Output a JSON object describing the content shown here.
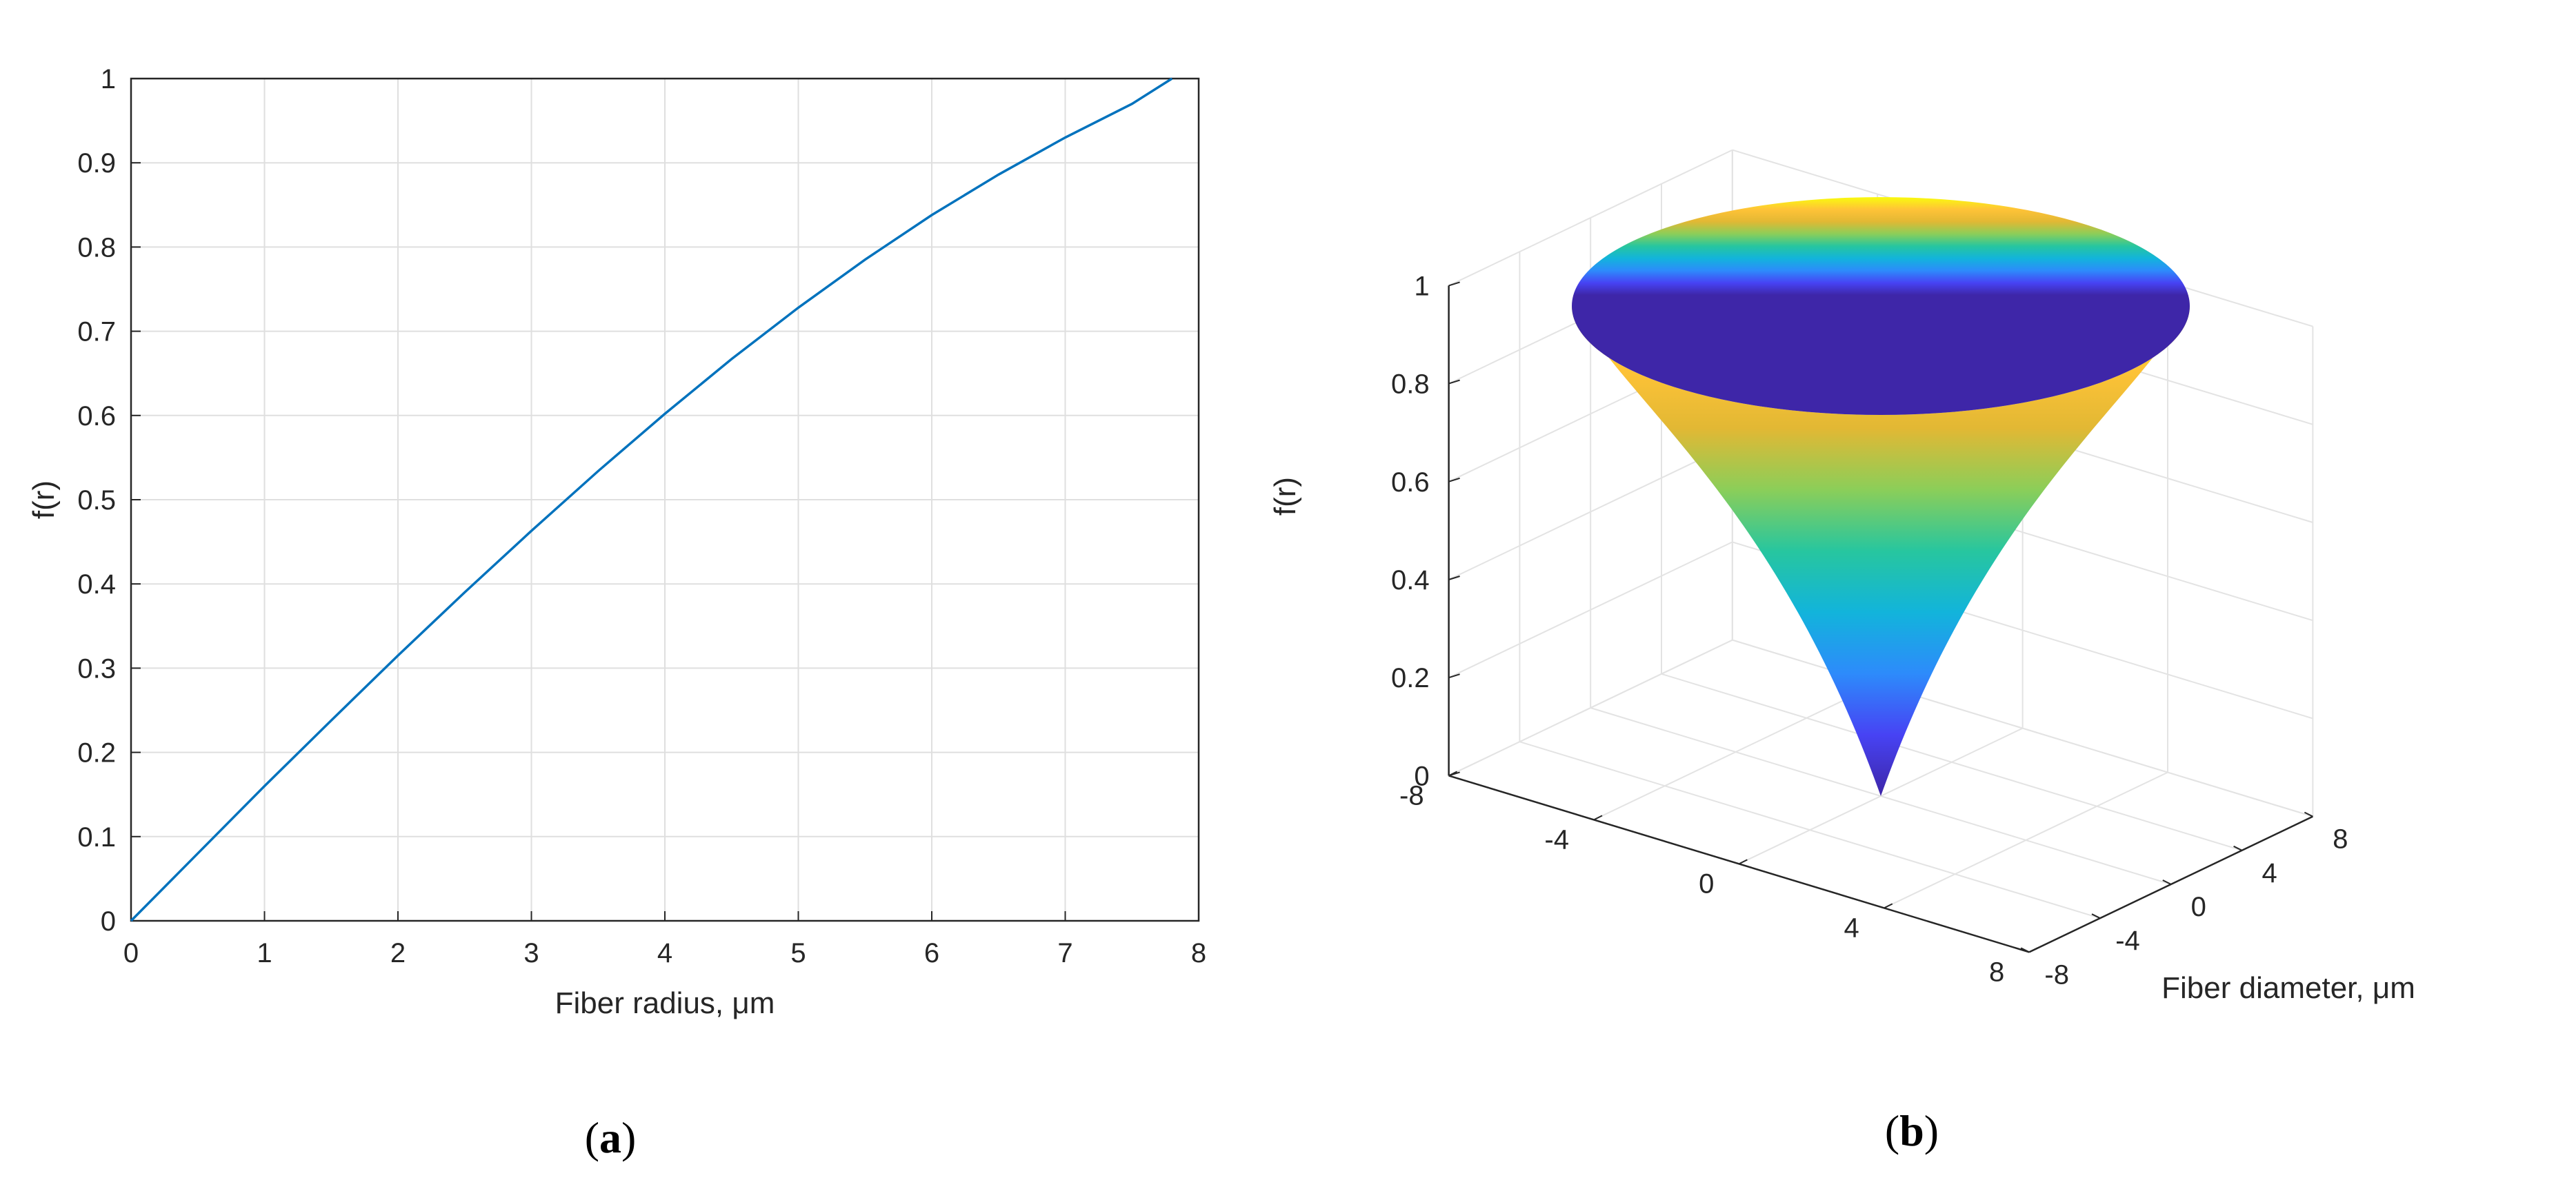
{
  "chart_data": [
    {
      "type": "line",
      "panel_label": {
        "open": "(",
        "letter": "a",
        "close": ")"
      },
      "xlabel": "Fiber radius, μm",
      "ylabel": "f(r)",
      "xlim": [
        0,
        8
      ],
      "ylim": [
        0,
        1
      ],
      "xticks": [
        "0",
        "1",
        "2",
        "3",
        "4",
        "5",
        "6",
        "7",
        "8"
      ],
      "yticks": [
        "0",
        "0.1",
        "0.2",
        "0.3",
        "0.4",
        "0.5",
        "0.6",
        "0.7",
        "0.8",
        "0.9",
        "1"
      ],
      "grid": true,
      "series": [
        {
          "color": "#0072BD",
          "x": [
            0,
            0.5,
            1,
            1.5,
            2,
            2.5,
            3,
            3.5,
            4,
            4.5,
            5,
            5.5,
            6,
            6.5,
            7,
            7.5,
            7.8
          ],
          "y": [
            0,
            0.08,
            0.16,
            0.238,
            0.315,
            0.39,
            0.463,
            0.534,
            0.602,
            0.667,
            0.728,
            0.785,
            0.838,
            0.886,
            0.93,
            0.97,
            1.0
          ]
        }
      ]
    },
    {
      "type": "surface3d",
      "panel_label": {
        "open": "(",
        "letter": "b",
        "close": ")"
      },
      "xlabel": "Fiber diameter, μm",
      "ylabel": "",
      "zlabel": "f(r)",
      "xlim": [
        -8,
        8
      ],
      "ylim": [
        -8,
        8
      ],
      "zlim": [
        0,
        1
      ],
      "xticks": [
        "-8",
        "-4",
        "0",
        "4",
        "8"
      ],
      "yticks": [
        "-8",
        "-4",
        "0",
        "4",
        "8"
      ],
      "zticks": [
        "0",
        "0.2",
        "0.4",
        "0.6",
        "0.8",
        "1"
      ],
      "grid": true,
      "colormap": "parula",
      "colormap_stops": [
        "#3E26A8",
        "#4743F4",
        "#2D8BFB",
        "#12B4DB",
        "#27C69F",
        "#8BCE59",
        "#E2B834",
        "#FFC337",
        "#F9FB0E"
      ],
      "surface": {
        "r_max": 7.8,
        "r_samples": [
          0,
          2,
          4,
          6,
          7.8
        ],
        "f_samples": [
          0,
          0.315,
          0.602,
          0.838,
          1.0
        ]
      }
    }
  ]
}
